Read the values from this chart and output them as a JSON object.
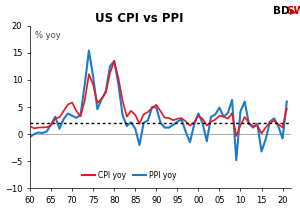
{
  "title": "US CPI vs PPI",
  "ylabel": "% yoy",
  "xlim": [
    1960,
    2022
  ],
  "ylim": [
    -10,
    20
  ],
  "yticks": [
    -10,
    -5,
    0,
    5,
    10,
    15,
    20
  ],
  "xticks": [
    1960,
    1965,
    1970,
    1975,
    1980,
    1985,
    1990,
    1995,
    2000,
    2005,
    2010,
    2015,
    2020
  ],
  "xticklabels": [
    "60",
    "65",
    "70",
    "75",
    "80",
    "85",
    "90",
    "95",
    "00",
    "05",
    "10",
    "15",
    "20"
  ],
  "dotted_line_y": 2.0,
  "cpi_color": "#e8191c",
  "ppi_color": "#1f7ac8",
  "cpi_linewidth": 1.2,
  "ppi_linewidth": 1.5,
  "legend_cpi": "CPI yoy",
  "legend_ppi": "PPI yoy",
  "bg_color": "#ffffff",
  "cpi_data": [
    [
      1960,
      1.46
    ],
    [
      1961,
      1.07
    ],
    [
      1962,
      1.2
    ],
    [
      1963,
      1.24
    ],
    [
      1964,
      1.28
    ],
    [
      1965,
      1.59
    ],
    [
      1966,
      2.86
    ],
    [
      1967,
      3.09
    ],
    [
      1968,
      4.27
    ],
    [
      1969,
      5.46
    ],
    [
      1970,
      5.84
    ],
    [
      1971,
      4.3
    ],
    [
      1972,
      3.27
    ],
    [
      1973,
      6.18
    ],
    [
      1974,
      11.05
    ],
    [
      1975,
      9.13
    ],
    [
      1976,
      5.74
    ],
    [
      1977,
      6.5
    ],
    [
      1978,
      7.63
    ],
    [
      1979,
      11.26
    ],
    [
      1980,
      13.5
    ],
    [
      1981,
      10.33
    ],
    [
      1982,
      6.17
    ],
    [
      1983,
      3.21
    ],
    [
      1984,
      4.3
    ],
    [
      1985,
      3.55
    ],
    [
      1986,
      1.9
    ],
    [
      1987,
      3.65
    ],
    [
      1988,
      4.08
    ],
    [
      1989,
      4.82
    ],
    [
      1990,
      5.39
    ],
    [
      1991,
      4.24
    ],
    [
      1992,
      3.03
    ],
    [
      1993,
      2.96
    ],
    [
      1994,
      2.56
    ],
    [
      1995,
      2.83
    ],
    [
      1996,
      2.95
    ],
    [
      1997,
      2.34
    ],
    [
      1998,
      1.55
    ],
    [
      1999,
      2.19
    ],
    [
      2000,
      3.37
    ],
    [
      2001,
      2.82
    ],
    [
      2002,
      1.59
    ],
    [
      2003,
      2.27
    ],
    [
      2004,
      2.68
    ],
    [
      2005,
      3.39
    ],
    [
      2006,
      3.23
    ],
    [
      2007,
      2.85
    ],
    [
      2008,
      3.84
    ],
    [
      2009,
      -0.35
    ],
    [
      2010,
      1.64
    ],
    [
      2011,
      3.16
    ],
    [
      2012,
      2.07
    ],
    [
      2013,
      1.46
    ],
    [
      2014,
      1.62
    ],
    [
      2015,
      0.12
    ],
    [
      2016,
      1.26
    ],
    [
      2017,
      2.13
    ],
    [
      2018,
      2.44
    ],
    [
      2019,
      1.81
    ],
    [
      2020,
      1.23
    ],
    [
      2021,
      4.7
    ]
  ],
  "ppi_data": [
    [
      1960,
      -0.5
    ],
    [
      1961,
      0.0
    ],
    [
      1962,
      0.3
    ],
    [
      1963,
      0.2
    ],
    [
      1964,
      0.5
    ],
    [
      1965,
      1.8
    ],
    [
      1966,
      3.2
    ],
    [
      1967,
      1.0
    ],
    [
      1968,
      2.8
    ],
    [
      1969,
      3.8
    ],
    [
      1970,
      3.4
    ],
    [
      1971,
      3.0
    ],
    [
      1972,
      3.5
    ],
    [
      1973,
      9.1
    ],
    [
      1974,
      15.4
    ],
    [
      1975,
      10.6
    ],
    [
      1976,
      4.6
    ],
    [
      1977,
      6.4
    ],
    [
      1978,
      7.9
    ],
    [
      1979,
      12.5
    ],
    [
      1980,
      13.5
    ],
    [
      1981,
      9.2
    ],
    [
      1982,
      3.5
    ],
    [
      1983,
      1.5
    ],
    [
      1984,
      2.2
    ],
    [
      1985,
      1.0
    ],
    [
      1986,
      -2.0
    ],
    [
      1987,
      2.1
    ],
    [
      1988,
      2.5
    ],
    [
      1989,
      5.0
    ],
    [
      1990,
      4.9
    ],
    [
      1991,
      2.1
    ],
    [
      1992,
      1.2
    ],
    [
      1993,
      1.2
    ],
    [
      1994,
      1.7
    ],
    [
      1995,
      2.3
    ],
    [
      1996,
      2.7
    ],
    [
      1997,
      0.4
    ],
    [
      1998,
      -1.5
    ],
    [
      1999,
      1.8
    ],
    [
      2000,
      3.8
    ],
    [
      2001,
      2.0
    ],
    [
      2002,
      -1.3
    ],
    [
      2003,
      3.2
    ],
    [
      2004,
      3.6
    ],
    [
      2005,
      4.9
    ],
    [
      2006,
      3.2
    ],
    [
      2007,
      3.9
    ],
    [
      2008,
      6.3
    ],
    [
      2009,
      -4.8
    ],
    [
      2010,
      4.2
    ],
    [
      2011,
      6.0
    ],
    [
      2012,
      1.9
    ],
    [
      2013,
      1.2
    ],
    [
      2014,
      1.9
    ],
    [
      2015,
      -3.2
    ],
    [
      2016,
      -0.9
    ],
    [
      2017,
      2.3
    ],
    [
      2018,
      2.9
    ],
    [
      2019,
      1.4
    ],
    [
      2020,
      -0.8
    ],
    [
      2021,
      6.0
    ]
  ]
}
